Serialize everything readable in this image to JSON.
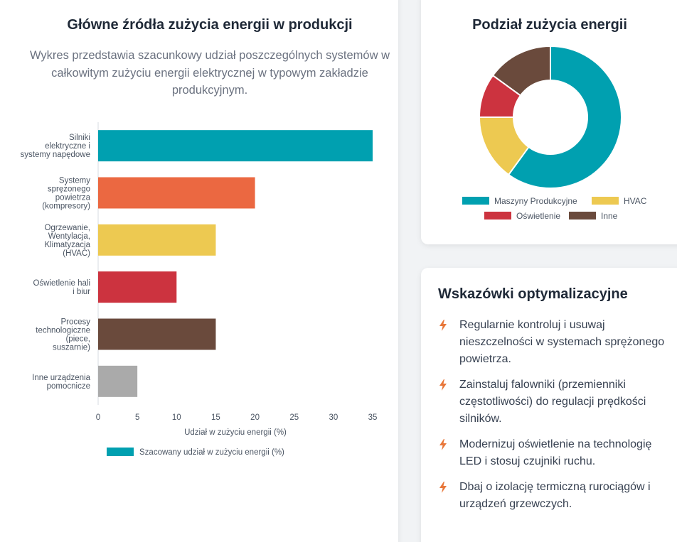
{
  "main": {
    "title": "Główne źródła zużycia energii w produkcji",
    "description": "Wykres przedstawia szacunkowy udział poszczególnych systemów w całkowitym zużyciu energii elektrycznej w typowym zakładzie produkcyjnym."
  },
  "donut": {
    "title": "Podział zużycia energii"
  },
  "tips": {
    "title": "Wskazówki optymalizacyjne",
    "icon": "lightning-bolt-icon",
    "icon_color": "#e8773a",
    "items": [
      "Regularnie kontroluj i usuwaj nieszczelności w systemach sprężonego powietrza.",
      "Zainstaluj falowniki (przemienniki częstotliwości) do regulacji prędkości silników.",
      "Modernizuj oświetlenie na technologię LED i stosuj czujniki ruchu.",
      "Dbaj o izolację termiczną rurociągów i urządzeń grzewczych."
    ]
  },
  "chart_data": [
    {
      "type": "bar",
      "orientation": "horizontal",
      "categories": [
        [
          "Silniki",
          "elektryczne i",
          "systemy napędowe"
        ],
        [
          "Systemy",
          "sprężonego",
          "powietrza",
          "(kompresory)"
        ],
        [
          "Ogrzewanie,",
          "Wentylacja,",
          "Klimatyzacja",
          "(HVAC)"
        ],
        [
          "Oświetlenie hali",
          "i biur"
        ],
        [
          "Procesy",
          "technologiczne",
          "(piece,",
          "suszarnie)"
        ],
        [
          "Inne urządzenia",
          "pomocnicze"
        ]
      ],
      "series": [
        {
          "name": "Szacowany udział w zużyciu energii (%)",
          "values": [
            35,
            20,
            15,
            10,
            15,
            5
          ]
        }
      ],
      "colors": [
        "#00a0b0",
        "#eb6841",
        "#edc951",
        "#cc333f",
        "#6a4a3c",
        "#aaaaaa"
      ],
      "legend_color": "#00a0b0",
      "xlabel": "Udział w zużyciu energii (%)",
      "ylabel": "",
      "xlim": [
        0,
        35
      ],
      "xticks": [
        0,
        5,
        10,
        15,
        20,
        25,
        30,
        35
      ],
      "legend": "bottom-left",
      "grid": false
    },
    {
      "type": "pie",
      "variant": "doughnut",
      "labels": [
        "Maszyny Produkcyjne",
        "HVAC",
        "Oświetlenie",
        "Inne"
      ],
      "values": [
        60,
        15,
        10,
        15
      ],
      "colors": [
        "#00a0b0",
        "#edc951",
        "#cc333f",
        "#6a4a3c"
      ],
      "legend": "bottom"
    }
  ]
}
